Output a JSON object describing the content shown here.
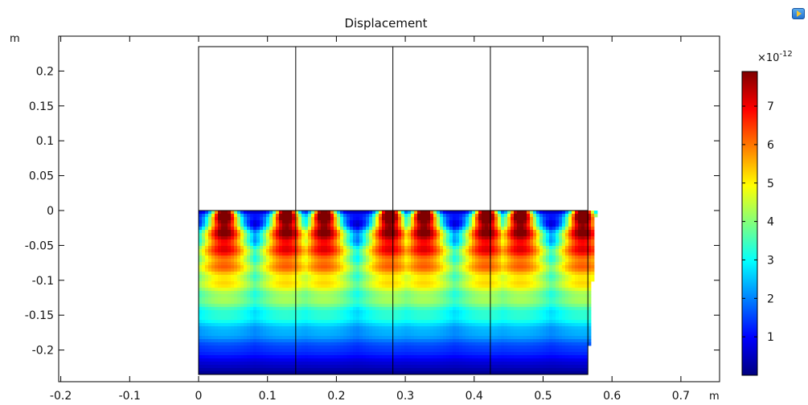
{
  "toolbar": {
    "icon": "play-export-icon"
  },
  "chart_data": {
    "type": "heatmap",
    "title": "Displacement",
    "x_unit": "m",
    "y_unit": "m",
    "xlim": [
      -0.2,
      0.75
    ],
    "ylim": [
      -0.245,
      0.235
    ],
    "x_ticks": [
      "-0.2",
      "-0.1",
      "0",
      "0.1",
      "0.2",
      "0.3",
      "0.4",
      "0.5",
      "0.6",
      "0.7"
    ],
    "x_tick_values": [
      -0.2,
      -0.1,
      0,
      0.1,
      0.2,
      0.3,
      0.4,
      0.5,
      0.6,
      0.7
    ],
    "y_ticks": [
      "0.2",
      "0.15",
      "0.1",
      "0.05",
      "0",
      "-0.05",
      "-0.1",
      "-0.15",
      "-0.2"
    ],
    "y_tick_values": [
      0.2,
      0.15,
      0.1,
      0.05,
      0,
      -0.05,
      -0.1,
      -0.15,
      -0.2
    ],
    "domain": {
      "x": [
        0,
        0.565
      ],
      "y": [
        -0.235,
        0.235
      ],
      "field_y_top": 0
    },
    "cell_dividers_x": [
      0.141,
      0.282,
      0.4235
    ],
    "colorbar": {
      "exponent_label": "×10",
      "exponent": "-12",
      "min": 0,
      "max": 7.9,
      "ticks": [
        "7",
        "6",
        "5",
        "4",
        "3",
        "2",
        "1"
      ],
      "tick_values": [
        7,
        6,
        5,
        4,
        3,
        2,
        1
      ],
      "colormap": [
        "#00007f",
        "#0000ff",
        "#007fff",
        "#00ffff",
        "#7fff7f",
        "#ffff00",
        "#ff7f00",
        "#ff0000",
        "#7f0000"
      ]
    },
    "field": {
      "hot_spot_x": [
        0.035,
        0.125,
        0.18,
        0.275,
        0.325,
        0.415,
        0.465,
        0.555
      ],
      "peak_value": 7.9
    }
  }
}
